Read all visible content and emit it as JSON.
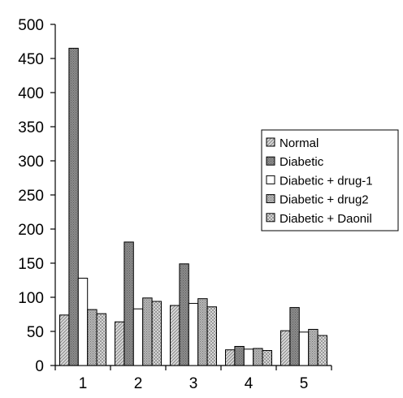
{
  "chart_data": {
    "type": "bar",
    "title": "",
    "xlabel": "",
    "ylabel": "",
    "categories": [
      "1",
      "2",
      "3",
      "4",
      "5"
    ],
    "ylim": [
      0,
      500
    ],
    "yticks": [
      "0",
      "50",
      "100",
      "150",
      "200",
      "250",
      "300",
      "350",
      "400",
      "450",
      "500"
    ],
    "grid": false,
    "legend_position": "right",
    "series": [
      {
        "name": "Normal",
        "values": [
          74,
          64,
          88,
          23,
          51
        ],
        "pattern": "diagonal-light"
      },
      {
        "name": "Diabetic",
        "values": [
          465,
          181,
          149,
          28,
          85
        ],
        "pattern": "dark-dots"
      },
      {
        "name": "Diabetic + drug-1",
        "values": [
          128,
          83,
          91,
          24,
          49
        ],
        "pattern": "white"
      },
      {
        "name": "Diabetic + drug2",
        "values": [
          82,
          99,
          98,
          25,
          53
        ],
        "pattern": "medium-dots"
      },
      {
        "name": "Diabetic + Daonil",
        "values": [
          76,
          94,
          86,
          22,
          44
        ],
        "pattern": "checker"
      }
    ]
  }
}
